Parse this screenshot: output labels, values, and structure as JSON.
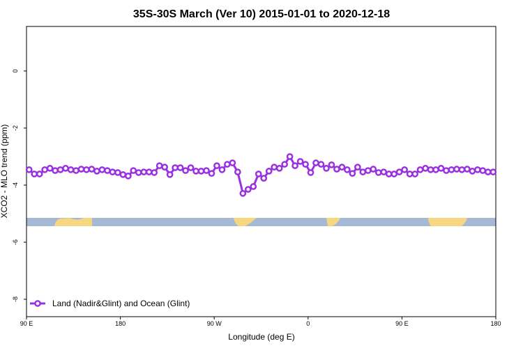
{
  "chart_data": {
    "type": "line",
    "title": "35S-30S March (Ver 10)   2015-01-01 to 2020-12-18",
    "x_label": "Longitude (deg E)",
    "y_label": "XCO2 - MLO trend (ppm)",
    "x": [
      92.5,
      97.5,
      102.5,
      107.5,
      112.5,
      117.5,
      122.5,
      127.5,
      132.5,
      137.5,
      142.5,
      147.5,
      152.5,
      157.5,
      162.5,
      167.5,
      172.5,
      177.5,
      182.5,
      187.5,
      192.5,
      197.5,
      202.5,
      207.5,
      212.5,
      217.5,
      222.5,
      227.5,
      232.5,
      237.5,
      242.5,
      247.5,
      252.5,
      257.5,
      262.5,
      267.5,
      272.5,
      277.5,
      282.5,
      287.5,
      292.5,
      297.5,
      302.5,
      307.5,
      312.5,
      317.5,
      322.5,
      327.5,
      332.5,
      337.5,
      342.5,
      347.5,
      352.5,
      357.5,
      362.5,
      367.5,
      372.5,
      377.5,
      382.5,
      387.5,
      392.5,
      397.5,
      402.5,
      407.5,
      412.5,
      417.5,
      422.5,
      427.5,
      432.5,
      437.5,
      442.5,
      447.5,
      452.5,
      457.5,
      462.5,
      467.5,
      472.5,
      477.5,
      482.5,
      487.5,
      492.5,
      497.5,
      502.5,
      507.5,
      512.5,
      517.5,
      522.5,
      527.5,
      532.5,
      537.5
    ],
    "series": [
      {
        "name": "Land (Nadir&Glint) and Ocean (Glint)",
        "color": "#9b30e0",
        "values": [
          -3.46,
          -3.61,
          -3.61,
          -3.46,
          -3.41,
          -3.49,
          -3.46,
          -3.41,
          -3.46,
          -3.49,
          -3.44,
          -3.46,
          -3.44,
          -3.51,
          -3.46,
          -3.49,
          -3.54,
          -3.56,
          -3.63,
          -3.68,
          -3.49,
          -3.56,
          -3.54,
          -3.54,
          -3.56,
          -3.32,
          -3.37,
          -3.63,
          -3.39,
          -3.39,
          -3.49,
          -3.39,
          -3.51,
          -3.51,
          -3.49,
          -3.59,
          -3.32,
          -3.46,
          -3.27,
          -3.22,
          -3.54,
          -4.29,
          -4.15,
          -4.05,
          -3.61,
          -3.76,
          -3.51,
          -3.37,
          -3.41,
          -3.27,
          -3.0,
          -3.32,
          -3.17,
          -3.27,
          -3.56,
          -3.22,
          -3.27,
          -3.41,
          -3.29,
          -3.44,
          -3.37,
          -3.46,
          -3.59,
          -3.37,
          -3.54,
          -3.49,
          -3.44,
          -3.56,
          -3.54,
          -3.61,
          -3.61,
          -3.54,
          -3.46,
          -3.61,
          -3.61,
          -3.46,
          -3.41,
          -3.46,
          -3.46,
          -3.41,
          -3.49,
          -3.46,
          -3.44,
          -3.46,
          -3.44,
          -3.51,
          -3.46,
          -3.49,
          -3.54,
          -3.54
        ]
      }
    ],
    "xlim": [
      90,
      540
    ],
    "xticks": [
      {
        "value": 90,
        "label": "90 E"
      },
      180,
      {
        "value": 270,
        "label": "90 W"
      },
      {
        "value": 360,
        "label": "0"
      },
      {
        "value": 450,
        "label": "90 E"
      },
      {
        "value": 540,
        "label": "180"
      }
    ],
    "ylim": [
      -8.61,
      1.56
    ],
    "yticks": [
      0,
      -2,
      -4,
      -6,
      -8
    ],
    "legend": "bottom-left"
  }
}
